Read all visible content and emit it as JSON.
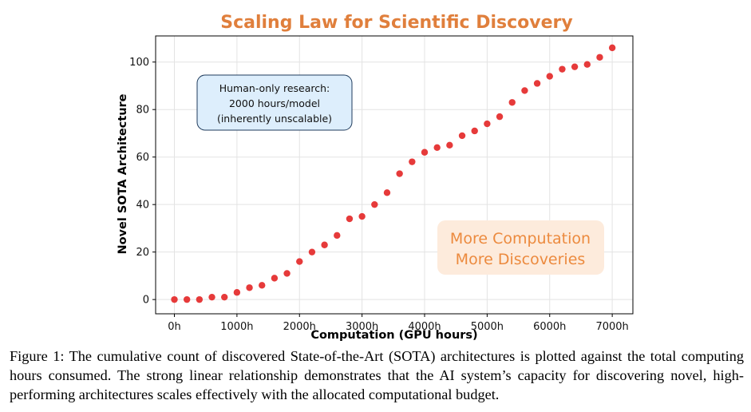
{
  "chart_data": {
    "type": "scatter",
    "title": "Scaling Law for Scientific Discovery",
    "xlabel": "Computation (GPU hours)",
    "ylabel": "Novel SOTA Architecture",
    "xlim": [
      -300,
      7330
    ],
    "ylim": [
      -6,
      111
    ],
    "grid": true,
    "x_ticks": [
      {
        "value": 0,
        "label": "0h"
      },
      {
        "value": 1000,
        "label": "1000h"
      },
      {
        "value": 2000,
        "label": "2000h"
      },
      {
        "value": 3000,
        "label": "3000h"
      },
      {
        "value": 4000,
        "label": "4000h"
      },
      {
        "value": 5000,
        "label": "5000h"
      },
      {
        "value": 6000,
        "label": "6000h"
      },
      {
        "value": 7000,
        "label": "7000h"
      }
    ],
    "y_ticks": [
      {
        "value": 0,
        "label": "0"
      },
      {
        "value": 20,
        "label": "20"
      },
      {
        "value": 40,
        "label": "40"
      },
      {
        "value": 60,
        "label": "60"
      },
      {
        "value": 80,
        "label": "80"
      },
      {
        "value": 100,
        "label": "100"
      }
    ],
    "marker_color": "#e63a3a",
    "series": [
      {
        "name": "Novel SOTA Architecture",
        "x": [
          0,
          200,
          400,
          600,
          800,
          1000,
          1200,
          1400,
          1600,
          1800,
          2000,
          2200,
          2400,
          2600,
          2800,
          3000,
          3200,
          3400,
          3600,
          3800,
          4000,
          4200,
          4400,
          4600,
          4800,
          5000,
          5200,
          5400,
          5600,
          5800,
          6000,
          6200,
          6400,
          6600,
          6800,
          7000
        ],
        "y": [
          0,
          0,
          0,
          1,
          1,
          3,
          5,
          6,
          9,
          11,
          16,
          20,
          23,
          27,
          34,
          35,
          40,
          45,
          53,
          58,
          62,
          64,
          65,
          69,
          71,
          74,
          77,
          83,
          88,
          91,
          94,
          97,
          98,
          99,
          102,
          106
        ]
      }
    ],
    "annotations": [
      {
        "id": "human-note",
        "lines": [
          "Human-only research:",
          "2000 hours/model",
          "(inherently unscalable)"
        ],
        "fill": "#ddeefc",
        "stroke": "#1f3b5c"
      },
      {
        "id": "callout",
        "lines": [
          "More Computation",
          "More Discoveries"
        ],
        "fill": "#fdebdc",
        "text_color": "#ec8a3e"
      }
    ]
  },
  "caption": "Figure 1: The cumulative count of discovered State-of-the-Art (SOTA) architectures is plotted against the total computing hours consumed. The strong linear relationship demonstrates that the AI system’s capacity for discovering novel, high-performing architectures scales effectively with the allocated computational budget."
}
